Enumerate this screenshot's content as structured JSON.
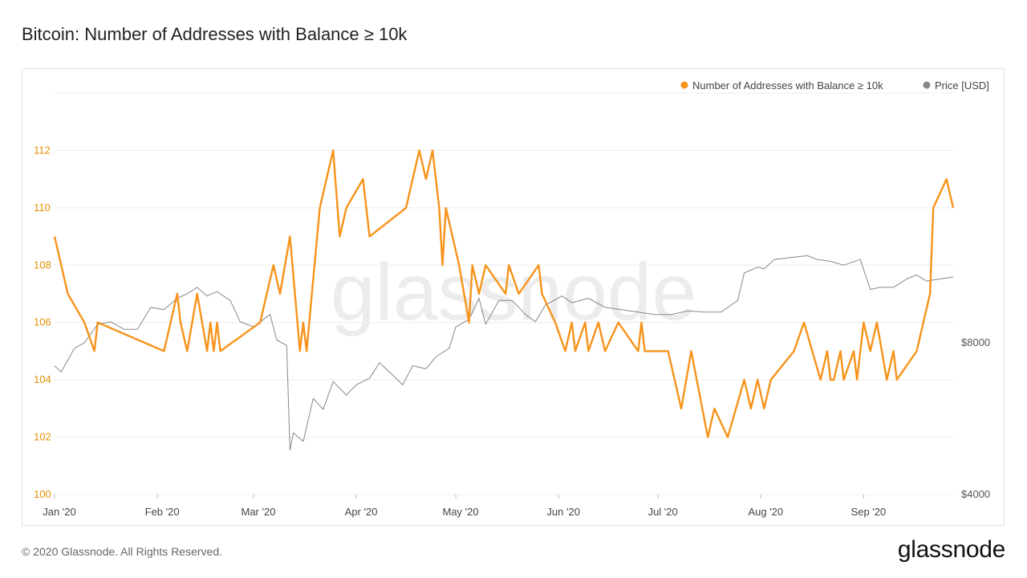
{
  "page": {
    "title": "Bitcoin: Number of Addresses with Balance ≥ 10k",
    "copyright": "© 2020 Glassnode. All Rights Reserved.",
    "logo_text": "glassnode",
    "watermark": "glassnode"
  },
  "chart_data": {
    "type": "line",
    "title": "Bitcoin: Number of Addresses with Balance ≥ 10k",
    "x": {
      "type": "date",
      "start": "2020-01-01",
      "end": "2020-09-28",
      "tick_labels": [
        "Jan '20",
        "Feb '20",
        "Mar '20",
        "Apr '20",
        "May '20",
        "Jun '20",
        "Jul '20",
        "Aug '20",
        "Sep '20"
      ],
      "tick_dates": [
        "2020-01-01",
        "2020-02-01",
        "2020-03-01",
        "2020-04-01",
        "2020-05-01",
        "2020-06-01",
        "2020-07-01",
        "2020-08-01",
        "2020-09-01"
      ]
    },
    "y_left": {
      "min": 100,
      "max": 114,
      "ticks": [
        100,
        102,
        104,
        106,
        108,
        110,
        112
      ],
      "tick_labels": [
        "100",
        "102",
        "104",
        "106",
        "108",
        "110",
        "112"
      ]
    },
    "y_right": {
      "scale": "log",
      "min": 4000,
      "max": 25000,
      "ticks": [
        4000,
        8000
      ],
      "tick_labels": [
        "$4000",
        "$8000"
      ]
    },
    "grid": true,
    "legend_position": "top-right",
    "series": [
      {
        "name": "Number of Addresses with Balance ≥ 10k",
        "axis": "left",
        "color": "#f7931a",
        "points": [
          [
            "2020-01-01",
            109
          ],
          [
            "2020-01-03",
            108
          ],
          [
            "2020-01-05",
            107
          ],
          [
            "2020-01-10",
            106
          ],
          [
            "2020-01-13",
            105
          ],
          [
            "2020-01-14",
            106
          ],
          [
            "2020-02-03",
            105
          ],
          [
            "2020-02-07",
            107
          ],
          [
            "2020-02-08",
            106
          ],
          [
            "2020-02-10",
            105
          ],
          [
            "2020-02-13",
            107
          ],
          [
            "2020-02-16",
            105
          ],
          [
            "2020-02-17",
            106
          ],
          [
            "2020-02-18",
            105
          ],
          [
            "2020-02-19",
            106
          ],
          [
            "2020-02-20",
            105
          ],
          [
            "2020-03-03",
            106
          ],
          [
            "2020-03-07",
            108
          ],
          [
            "2020-03-09",
            107
          ],
          [
            "2020-03-12",
            109
          ],
          [
            "2020-03-15",
            105
          ],
          [
            "2020-03-16",
            106
          ],
          [
            "2020-03-17",
            105
          ],
          [
            "2020-03-21",
            110
          ],
          [
            "2020-03-25",
            112
          ],
          [
            "2020-03-27",
            109
          ],
          [
            "2020-03-29",
            110
          ],
          [
            "2020-04-03",
            111
          ],
          [
            "2020-04-05",
            109
          ],
          [
            "2020-04-16",
            110
          ],
          [
            "2020-04-18",
            111
          ],
          [
            "2020-04-20",
            112
          ],
          [
            "2020-04-22",
            111
          ],
          [
            "2020-04-24",
            112
          ],
          [
            "2020-04-26",
            110
          ],
          [
            "2020-04-27",
            108
          ],
          [
            "2020-04-28",
            110
          ],
          [
            "2020-05-02",
            108
          ],
          [
            "2020-05-05",
            106
          ],
          [
            "2020-05-06",
            108
          ],
          [
            "2020-05-08",
            107
          ],
          [
            "2020-05-10",
            108
          ],
          [
            "2020-05-16",
            107
          ],
          [
            "2020-05-17",
            108
          ],
          [
            "2020-05-20",
            107
          ],
          [
            "2020-05-26",
            108
          ],
          [
            "2020-05-27",
            107
          ],
          [
            "2020-05-31",
            106
          ],
          [
            "2020-06-03",
            105
          ],
          [
            "2020-06-05",
            106
          ],
          [
            "2020-06-06",
            105
          ],
          [
            "2020-06-09",
            106
          ],
          [
            "2020-06-10",
            105
          ],
          [
            "2020-06-13",
            106
          ],
          [
            "2020-06-15",
            105
          ],
          [
            "2020-06-19",
            106
          ],
          [
            "2020-06-25",
            105
          ],
          [
            "2020-06-26",
            106
          ],
          [
            "2020-06-27",
            105
          ],
          [
            "2020-07-04",
            105
          ],
          [
            "2020-07-08",
            103
          ],
          [
            "2020-07-11",
            105
          ],
          [
            "2020-07-16",
            102
          ],
          [
            "2020-07-18",
            103
          ],
          [
            "2020-07-22",
            102
          ],
          [
            "2020-07-27",
            104
          ],
          [
            "2020-07-29",
            103
          ],
          [
            "2020-07-31",
            104
          ],
          [
            "2020-08-02",
            103
          ],
          [
            "2020-08-04",
            104
          ],
          [
            "2020-08-11",
            105
          ],
          [
            "2020-08-14",
            106
          ],
          [
            "2020-08-19",
            104
          ],
          [
            "2020-08-21",
            105
          ],
          [
            "2020-08-22",
            104
          ],
          [
            "2020-08-23",
            104
          ],
          [
            "2020-08-25",
            105
          ],
          [
            "2020-08-26",
            104
          ],
          [
            "2020-08-29",
            105
          ],
          [
            "2020-08-30",
            104
          ],
          [
            "2020-09-01",
            106
          ],
          [
            "2020-09-03",
            105
          ],
          [
            "2020-09-05",
            106
          ],
          [
            "2020-09-08",
            104
          ],
          [
            "2020-09-10",
            105
          ],
          [
            "2020-09-11",
            104
          ],
          [
            "2020-09-17",
            105
          ],
          [
            "2020-09-21",
            107
          ],
          [
            "2020-09-22",
            110
          ],
          [
            "2020-09-26",
            111
          ],
          [
            "2020-09-28",
            110
          ]
        ]
      },
      {
        "name": "Price [USD]",
        "axis": "right",
        "color": "#888888",
        "points": [
          [
            "2020-01-01",
            7200
          ],
          [
            "2020-01-03",
            7000
          ],
          [
            "2020-01-07",
            7800
          ],
          [
            "2020-01-10",
            8000
          ],
          [
            "2020-01-14",
            8700
          ],
          [
            "2020-01-18",
            8800
          ],
          [
            "2020-01-22",
            8500
          ],
          [
            "2020-01-26",
            8500
          ],
          [
            "2020-01-30",
            9400
          ],
          [
            "2020-02-03",
            9300
          ],
          [
            "2020-02-07",
            9800
          ],
          [
            "2020-02-10",
            10000
          ],
          [
            "2020-02-13",
            10300
          ],
          [
            "2020-02-16",
            9900
          ],
          [
            "2020-02-19",
            10100
          ],
          [
            "2020-02-23",
            9700
          ],
          [
            "2020-02-26",
            8800
          ],
          [
            "2020-03-01",
            8600
          ],
          [
            "2020-03-06",
            9100
          ],
          [
            "2020-03-08",
            8100
          ],
          [
            "2020-03-11",
            7900
          ],
          [
            "2020-03-12",
            4900
          ],
          [
            "2020-03-13",
            5300
          ],
          [
            "2020-03-16",
            5100
          ],
          [
            "2020-03-19",
            6200
          ],
          [
            "2020-03-22",
            5900
          ],
          [
            "2020-03-25",
            6700
          ],
          [
            "2020-03-29",
            6300
          ],
          [
            "2020-04-01",
            6600
          ],
          [
            "2020-04-05",
            6800
          ],
          [
            "2020-04-08",
            7300
          ],
          [
            "2020-04-12",
            6900
          ],
          [
            "2020-04-15",
            6600
          ],
          [
            "2020-04-18",
            7200
          ],
          [
            "2020-04-22",
            7100
          ],
          [
            "2020-04-25",
            7500
          ],
          [
            "2020-04-29",
            7800
          ],
          [
            "2020-05-01",
            8600
          ],
          [
            "2020-05-05",
            8900
          ],
          [
            "2020-05-08",
            9800
          ],
          [
            "2020-05-10",
            8700
          ],
          [
            "2020-05-14",
            9700
          ],
          [
            "2020-05-18",
            9700
          ],
          [
            "2020-05-22",
            9100
          ],
          [
            "2020-05-25",
            8800
          ],
          [
            "2020-05-28",
            9500
          ],
          [
            "2020-06-02",
            9900
          ],
          [
            "2020-06-05",
            9600
          ],
          [
            "2020-06-10",
            9800
          ],
          [
            "2020-06-15",
            9400
          ],
          [
            "2020-06-20",
            9300
          ],
          [
            "2020-06-25",
            9200
          ],
          [
            "2020-06-30",
            9100
          ],
          [
            "2020-07-05",
            9100
          ],
          [
            "2020-07-10",
            9250
          ],
          [
            "2020-07-15",
            9200
          ],
          [
            "2020-07-20",
            9200
          ],
          [
            "2020-07-25",
            9700
          ],
          [
            "2020-07-27",
            11000
          ],
          [
            "2020-07-31",
            11300
          ],
          [
            "2020-08-02",
            11200
          ],
          [
            "2020-08-05",
            11700
          ],
          [
            "2020-08-10",
            11800
          ],
          [
            "2020-08-15",
            11900
          ],
          [
            "2020-08-18",
            11700
          ],
          [
            "2020-08-22",
            11600
          ],
          [
            "2020-08-26",
            11400
          ],
          [
            "2020-08-31",
            11700
          ],
          [
            "2020-09-03",
            10200
          ],
          [
            "2020-09-06",
            10300
          ],
          [
            "2020-09-10",
            10300
          ],
          [
            "2020-09-14",
            10700
          ],
          [
            "2020-09-17",
            10900
          ],
          [
            "2020-09-20",
            10600
          ],
          [
            "2020-09-24",
            10700
          ],
          [
            "2020-09-28",
            10800
          ]
        ]
      }
    ]
  }
}
